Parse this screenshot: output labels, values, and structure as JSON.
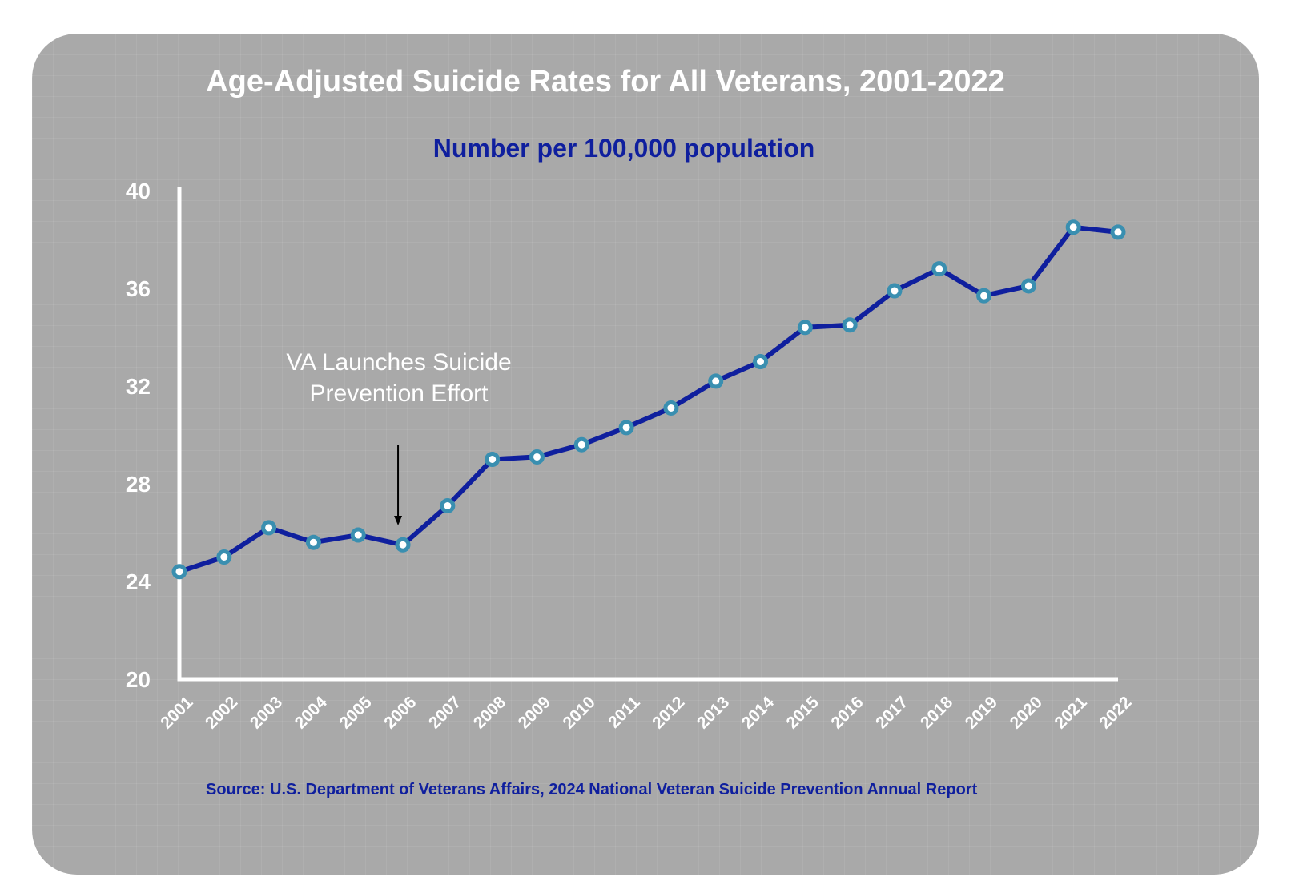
{
  "colors": {
    "panel": "#a9a9a9",
    "line": "#0f1f9e",
    "marker": "#3a8fb0",
    "marker_center": "#ffffff",
    "axis": "#ffffff",
    "title": "#ffffff",
    "subtitle": "#0f1f9e",
    "source": "#0f1f9e"
  },
  "chart_data": {
    "type": "line",
    "title": "Age-Adjusted Suicide Rates for All Veterans, 2001-2022",
    "subtitle": "Number per 100,000 population",
    "xlabel": "",
    "ylabel": "",
    "x": [
      "2001",
      "2002",
      "2003",
      "2004",
      "2005",
      "2006",
      "2007",
      "2008",
      "2009",
      "2010",
      "2011",
      "2012",
      "2013",
      "2014",
      "2015",
      "2016",
      "2017",
      "2018",
      "2019",
      "2020",
      "2021",
      "2022"
    ],
    "series": [
      {
        "values": [
          24.4,
          25.0,
          26.2,
          25.6,
          25.9,
          25.5,
          27.1,
          29.0,
          29.1,
          29.6,
          30.3,
          31.1,
          32.2,
          33.0,
          34.4,
          34.5,
          35.9,
          36.8,
          35.7,
          36.1,
          38.5,
          38.3
        ]
      }
    ],
    "ylim": [
      20,
      40
    ],
    "yticks": [
      "20",
      "24",
      "28",
      "32",
      "36",
      "40"
    ],
    "grid": false,
    "legend": "none",
    "annotation": {
      "lines": [
        "VA Launches Suicide",
        "Prevention Effort"
      ],
      "points_to": "2006"
    },
    "source": "Source: U.S. Department of Veterans Affairs, 2024 National Veteran Suicide Prevention Annual Report"
  }
}
